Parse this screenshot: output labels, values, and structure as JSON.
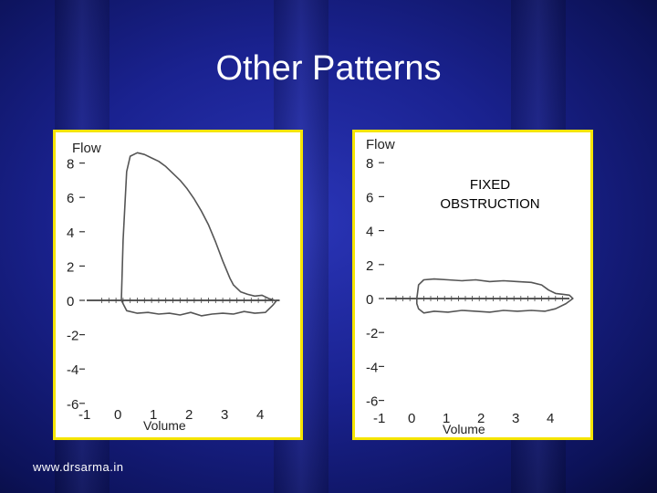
{
  "slide": {
    "title": "Other Patterns",
    "footer": "www.drsarma.in"
  },
  "chart_data": [
    {
      "type": "line",
      "title": "",
      "ylabel": "Flow",
      "xlabel": "Volume",
      "xlim": [
        -1,
        4.5
      ],
      "ylim": [
        -6,
        8
      ],
      "x_ticks": [
        "-1",
        "0",
        "1",
        "2",
        "3",
        "4"
      ],
      "y_ticks": [
        "8",
        "6",
        "4",
        "2",
        "0",
        "-2",
        "-4",
        "-6"
      ],
      "series": [
        {
          "x": [
            0.05,
            0.1,
            0.2,
            0.3,
            0.5,
            0.7,
            0.9,
            1.1,
            1.3,
            1.5,
            1.7,
            1.9,
            2.1,
            2.3,
            2.5,
            2.7,
            2.9,
            3.0,
            3.1,
            3.2,
            3.4,
            3.6,
            3.8,
            4.0,
            4.1,
            4.2,
            4.3,
            4.4,
            4.3,
            4.1,
            3.8,
            3.5,
            3.2,
            2.9,
            2.6,
            2.3,
            2.0,
            1.7,
            1.4,
            1.1,
            0.8,
            0.5,
            0.2,
            0.05
          ],
          "y": [
            0,
            3.5,
            7.5,
            8.4,
            8.6,
            8.5,
            8.3,
            8.1,
            7.8,
            7.4,
            7.0,
            6.5,
            5.9,
            5.2,
            4.4,
            3.4,
            2.3,
            1.8,
            1.3,
            0.9,
            0.5,
            0.35,
            0.25,
            0.3,
            0.2,
            0.1,
            0.05,
            -0.05,
            -0.3,
            -0.7,
            -0.75,
            -0.65,
            -0.8,
            -0.75,
            -0.8,
            -0.9,
            -0.7,
            -0.85,
            -0.75,
            -0.8,
            -0.7,
            -0.75,
            -0.6,
            0
          ]
        }
      ]
    },
    {
      "type": "line",
      "title": "",
      "ylabel": "Flow",
      "xlabel": "Volume",
      "xlim": [
        -1,
        4.5
      ],
      "ylim": [
        -6,
        8
      ],
      "x_ticks": [
        "-1",
        "0",
        "1",
        "2",
        "3",
        "4"
      ],
      "y_ticks": [
        "8",
        "6",
        "4",
        "2",
        "0",
        "-2",
        "-4",
        "-6"
      ],
      "annotation": [
        "FIXED",
        "OBSTRUCTION"
      ],
      "series": [
        {
          "x": [
            0.1,
            0.15,
            0.3,
            0.6,
            1.0,
            1.4,
            1.8,
            2.2,
            2.6,
            3.0,
            3.4,
            3.7,
            3.9,
            4.1,
            4.3,
            4.5,
            4.6,
            4.4,
            4.1,
            3.8,
            3.4,
            3.0,
            2.6,
            2.2,
            1.8,
            1.4,
            1.0,
            0.6,
            0.3,
            0.15,
            0.1,
            0.1
          ],
          "y": [
            0,
            0.8,
            1.1,
            1.15,
            1.1,
            1.05,
            1.1,
            1.0,
            1.05,
            1.0,
            0.95,
            0.8,
            0.5,
            0.3,
            0.25,
            0.2,
            0,
            -0.3,
            -0.6,
            -0.75,
            -0.7,
            -0.75,
            -0.7,
            -0.8,
            -0.75,
            -0.7,
            -0.8,
            -0.75,
            -0.85,
            -0.6,
            -0.3,
            0
          ]
        }
      ]
    }
  ]
}
